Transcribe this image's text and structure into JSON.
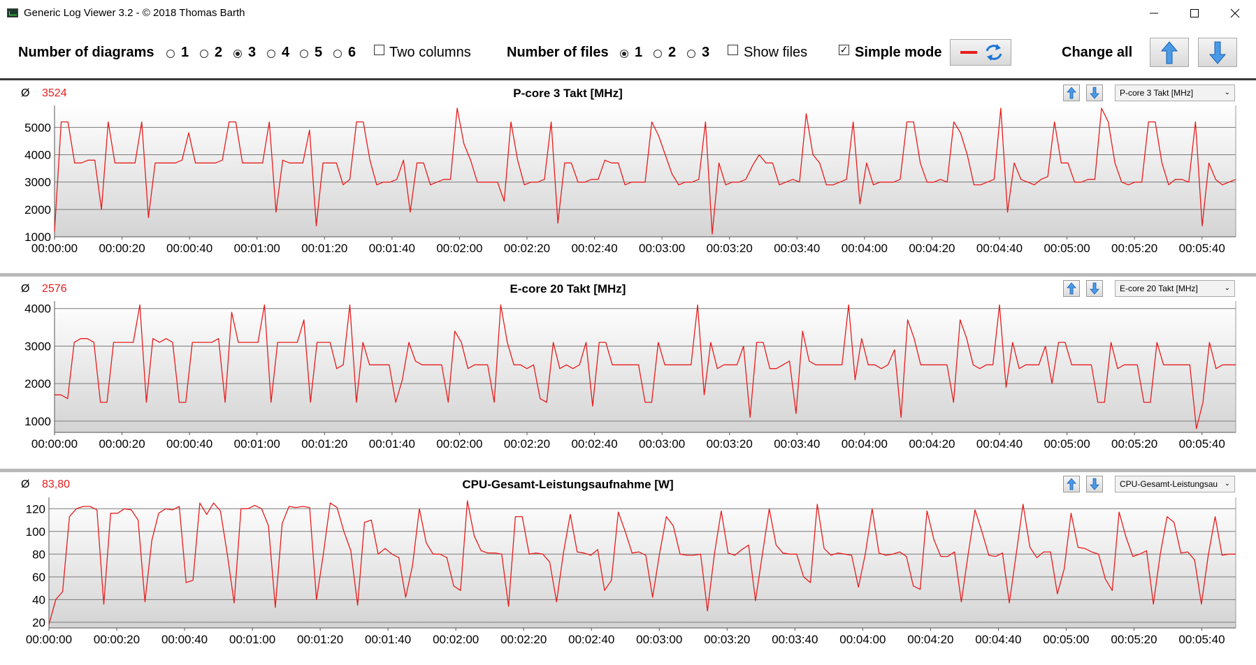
{
  "window": {
    "title": "Generic Log Viewer 3.2 - © 2018 Thomas Barth",
    "icon": "app-icon",
    "controls": [
      "minimize-icon",
      "maximize-icon",
      "close-icon"
    ]
  },
  "toolbar": {
    "num_diagrams_label": "Number of diagrams",
    "diagram_options": [
      "1",
      "2",
      "3",
      "4",
      "5",
      "6"
    ],
    "diagram_selected": "3",
    "two_columns_label": "Two columns",
    "two_columns_checked": false,
    "num_files_label": "Number of files",
    "file_options": [
      "1",
      "2",
      "3"
    ],
    "file_selected": "1",
    "show_files_label": "Show files",
    "show_files_checked": false,
    "simple_mode_label": "Simple mode",
    "simple_mode_checked": true,
    "change_all_label": "Change all",
    "line_color": "#e81c1c",
    "icons": [
      "refresh-icon",
      "arrow-up-icon",
      "arrow-down-icon"
    ]
  },
  "chart_data": [
    {
      "type": "line",
      "title": "P-core 3 Takt [MHz]",
      "average_symbol": "Ø",
      "average": "3524",
      "selector": "P-core 3 Takt [MHz]",
      "ylim": [
        1000,
        5800
      ],
      "yticks": [
        1000,
        2000,
        3000,
        4000,
        5000
      ],
      "xlim": [
        0,
        350
      ],
      "xticks": [
        "00:00:00",
        "00:00:20",
        "00:00:40",
        "00:01:00",
        "00:01:20",
        "00:01:40",
        "00:02:00",
        "00:02:20",
        "00:02:40",
        "00:03:00",
        "00:03:20",
        "00:03:40",
        "00:04:00",
        "00:04:20",
        "00:04:40",
        "00:05:00",
        "00:05:20",
        "00:05:40"
      ],
      "grid": true,
      "color": "#e81c1c",
      "y": [
        1200,
        5200,
        5200,
        3700,
        3700,
        3800,
        3800,
        2000,
        5200,
        3700,
        3700,
        3700,
        3700,
        5200,
        1700,
        3700,
        3700,
        3700,
        3700,
        3800,
        4800,
        3700,
        3700,
        3700,
        3700,
        3800,
        5200,
        5200,
        3700,
        3700,
        3700,
        3700,
        5200,
        1900,
        3800,
        3700,
        3700,
        3700,
        4900,
        1400,
        3700,
        3700,
        3700,
        2900,
        3100,
        5200,
        5200,
        3800,
        2900,
        3000,
        3000,
        3100,
        3800,
        1900,
        3700,
        3700,
        2900,
        3000,
        3100,
        3100,
        5700,
        4400,
        3800,
        3000,
        3000,
        3000,
        3000,
        2300,
        5200,
        3800,
        2900,
        3000,
        3000,
        3100,
        5200,
        1500,
        3700,
        3700,
        3000,
        3000,
        3100,
        3100,
        3800,
        3700,
        3700,
        2900,
        3000,
        3000,
        3000,
        5200,
        4700,
        4000,
        3300,
        2900,
        3000,
        3000,
        3100,
        5200,
        1100,
        3700,
        2900,
        3000,
        3000,
        3100,
        3600,
        4000,
        3700,
        3700,
        2900,
        3000,
        3100,
        3000,
        5500,
        4000,
        3700,
        2900,
        2900,
        3000,
        3100,
        5200,
        2200,
        3700,
        2900,
        3000,
        3000,
        3000,
        3100,
        5200,
        5200,
        3700,
        3000,
        3000,
        3100,
        3000,
        5200,
        4800,
        4000,
        2900,
        2900,
        3000,
        3100,
        5700,
        1900,
        3700,
        3100,
        3000,
        2900,
        3100,
        3200,
        5200,
        3700,
        3700,
        3000,
        3000,
        3100,
        3100,
        5700,
        5200,
        3700,
        3000,
        2900,
        3000,
        3000,
        5200,
        5200,
        3700,
        2900,
        3100,
        3100,
        3000,
        5200,
        1400,
        3700,
        3100,
        2900,
        3000,
        3100
      ]
    },
    {
      "type": "line",
      "title": "E-core 20 Takt [MHz]",
      "average_symbol": "Ø",
      "average": "2576",
      "selector": "E-core 20 Takt [MHz]",
      "ylim": [
        700,
        4200
      ],
      "yticks": [
        1000,
        2000,
        3000,
        4000
      ],
      "xlim": [
        0,
        350
      ],
      "xticks": [
        "00:00:00",
        "00:00:20",
        "00:00:40",
        "00:01:00",
        "00:01:20",
        "00:01:40",
        "00:02:00",
        "00:02:20",
        "00:02:40",
        "00:03:00",
        "00:03:20",
        "00:03:40",
        "00:04:00",
        "00:04:20",
        "00:04:40",
        "00:05:00",
        "00:05:20",
        "00:05:40"
      ],
      "grid": true,
      "color": "#e81c1c",
      "y": [
        1700,
        1700,
        1600,
        3100,
        3200,
        3200,
        3100,
        1500,
        1500,
        3100,
        3100,
        3100,
        3100,
        4100,
        1500,
        3200,
        3100,
        3200,
        3100,
        1500,
        1500,
        3100,
        3100,
        3100,
        3100,
        3200,
        1500,
        3900,
        3100,
        3100,
        3100,
        3100,
        4100,
        1500,
        3100,
        3100,
        3100,
        3100,
        3700,
        1500,
        3100,
        3100,
        3100,
        2400,
        2500,
        4100,
        1500,
        3100,
        2500,
        2500,
        2500,
        2500,
        1500,
        2100,
        3100,
        2600,
        2500,
        2500,
        2500,
        2500,
        1500,
        3400,
        3100,
        2400,
        2500,
        2500,
        2500,
        1500,
        4100,
        3100,
        2500,
        2500,
        2400,
        2500,
        1600,
        1500,
        3100,
        2400,
        2500,
        2400,
        2500,
        3100,
        1400,
        3100,
        3100,
        2500,
        2500,
        2500,
        2500,
        2500,
        1500,
        1500,
        3100,
        2500,
        2500,
        2500,
        2500,
        2500,
        4100,
        1700,
        3100,
        2400,
        2500,
        2500,
        2500,
        3000,
        1100,
        3100,
        3100,
        2400,
        2400,
        2500,
        2600,
        1200,
        3400,
        2600,
        2500,
        2500,
        2500,
        2500,
        2500,
        4100,
        2100,
        3200,
        2500,
        2500,
        2400,
        2500,
        2900,
        1100,
        3700,
        3200,
        2500,
        2500,
        2500,
        2500,
        2500,
        1500,
        3700,
        3200,
        2500,
        2400,
        2500,
        2500,
        4100,
        1900,
        3100,
        2400,
        2500,
        2500,
        2500,
        3000,
        2000,
        3100,
        3100,
        2500,
        2500,
        2500,
        2500,
        1500,
        1500,
        3100,
        2400,
        2500,
        2500,
        2500,
        1500,
        1500,
        3100,
        2500,
        2500,
        2500,
        2500,
        2500,
        800,
        1500,
        3100,
        2400,
        2500,
        2500,
        2500
      ]
    },
    {
      "type": "line",
      "title": "CPU-Gesamt-Leistungsaufnahme [W]",
      "average_symbol": "Ø",
      "average": "83,80",
      "selector": "CPU-Gesamt-Leistungsau",
      "ylim": [
        15,
        130
      ],
      "yticks": [
        20,
        40,
        60,
        80,
        100,
        120
      ],
      "xlim": [
        0,
        350
      ],
      "xticks": [
        "00:00:00",
        "00:00:20",
        "00:00:40",
        "00:01:00",
        "00:01:20",
        "00:01:40",
        "00:02:00",
        "00:02:20",
        "00:02:40",
        "00:03:00",
        "00:03:20",
        "00:03:40",
        "00:04:00",
        "00:04:20",
        "00:04:40",
        "00:05:00",
        "00:05:20",
        "00:05:40"
      ],
      "grid": true,
      "color": "#e81c1c",
      "y": [
        18,
        40,
        47,
        113,
        120,
        122,
        122,
        119,
        36,
        116,
        116,
        120,
        119,
        110,
        38,
        92,
        116,
        120,
        119,
        122,
        55,
        57,
        125,
        115,
        125,
        118,
        80,
        37,
        120,
        120,
        123,
        120,
        105,
        33,
        107,
        122,
        121,
        122,
        121,
        40,
        80,
        125,
        121,
        100,
        83,
        35,
        108,
        110,
        80,
        85,
        80,
        77,
        42,
        70,
        120,
        90,
        80,
        80,
        77,
        52,
        48,
        127,
        96,
        83,
        81,
        81,
        80,
        34,
        113,
        113,
        80,
        81,
        80,
        73,
        38,
        81,
        115,
        82,
        81,
        79,
        84,
        48,
        57,
        117,
        100,
        81,
        82,
        79,
        42,
        80,
        113,
        105,
        80,
        79,
        79,
        80,
        30,
        80,
        118,
        81,
        79,
        84,
        88,
        39,
        80,
        120,
        88,
        81,
        80,
        80,
        60,
        55,
        124,
        85,
        79,
        81,
        80,
        79,
        51,
        80,
        120,
        81,
        79,
        80,
        82,
        78,
        52,
        49,
        118,
        93,
        78,
        78,
        82,
        38,
        80,
        119,
        100,
        79,
        78,
        81,
        37,
        80,
        124,
        86,
        77,
        82,
        82,
        45,
        67,
        116,
        86,
        85,
        82,
        80,
        58,
        48,
        117,
        95,
        78,
        80,
        83,
        36,
        80,
        113,
        108,
        81,
        82,
        75,
        36,
        79,
        113,
        79,
        80,
        80
      ]
    }
  ]
}
